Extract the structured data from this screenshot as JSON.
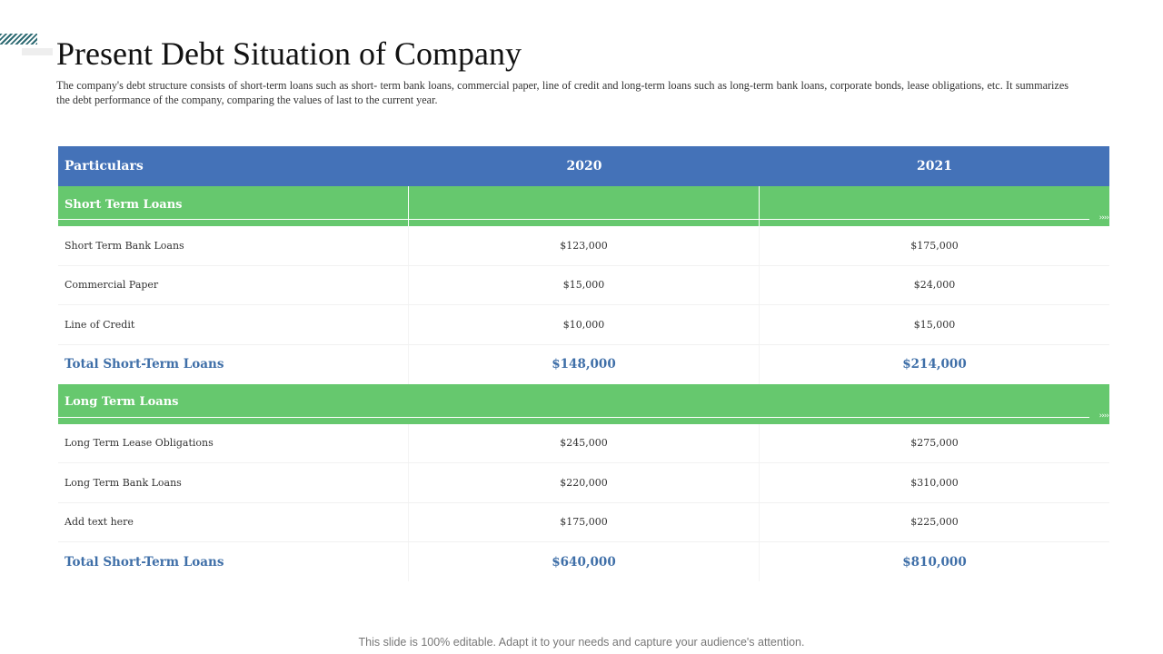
{
  "slide": {
    "title": "Present Debt Situation of Company",
    "description": "The company's debt structure consists of short-term loans such as short- term bank loans, commercial paper, line of credit and long-term loans such as long-term bank loans, corporate bonds, lease obligations, etc. It summarizes the debt performance of the company, comparing the values of last to the current year.",
    "footer": "This slide is 100% editable. Adapt it to your needs and capture your audience's attention."
  },
  "table": {
    "headers": [
      "Particulars",
      "2020",
      "2021"
    ],
    "sections": [
      {
        "label": "Short Term Loans",
        "rows": [
          [
            "Short Term Bank Loans",
            "$123,000",
            "$175,000"
          ],
          [
            "Commercial Paper",
            "$15,000",
            "$24,000"
          ],
          [
            "Line of Credit",
            "$10,000",
            "$15,000"
          ]
        ],
        "total": [
          "Total Short-Term Loans",
          "$148,000",
          "$214,000"
        ]
      },
      {
        "label": "Long Term Loans",
        "rows": [
          [
            "Long Term Lease Obligations",
            "$245,000",
            "$275,000"
          ],
          [
            "Long Term Bank Loans",
            "$220,000",
            "$310,000"
          ],
          [
            "Add text here",
            "$175,000",
            "$225,000"
          ]
        ],
        "total": [
          "Total Short-Term Loans",
          "$640,000",
          "$810,000"
        ]
      }
    ],
    "arrow_glyph": "››››"
  },
  "colors": {
    "header_bg": "#4472b8",
    "section_bg": "#66c86e",
    "total_text": "#3f6fa8",
    "accent_stripes": "#2e6b73"
  }
}
